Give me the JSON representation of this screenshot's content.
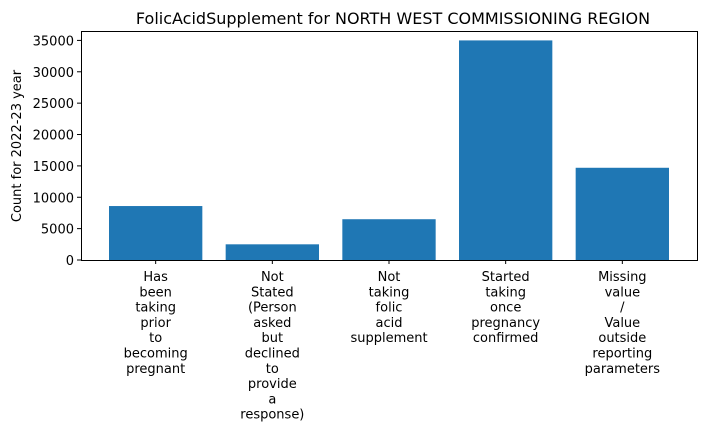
{
  "chart_data": {
    "type": "bar",
    "title": "FolicAcidSupplement for NORTH WEST COMMISSIONING REGION",
    "xlabel": "",
    "ylabel": "Count for 2022-23 year",
    "ylim": [
      0,
      36500
    ],
    "yticks": [
      0,
      5000,
      10000,
      15000,
      20000,
      25000,
      30000,
      35000
    ],
    "grid": false,
    "bar_color": "#1f77b4",
    "categories": [
      [
        "Has",
        "been",
        "taking",
        "prior",
        "to",
        "becoming",
        "pregnant"
      ],
      [
        "Not",
        "Stated",
        "(Person",
        "asked",
        "but",
        "declined",
        "to",
        "provide",
        "a",
        "response)"
      ],
      [
        "Not",
        "taking",
        "folic",
        "acid",
        "supplement"
      ],
      [
        "Started",
        "taking",
        "once",
        "pregnancy",
        "confirmed"
      ],
      [
        "Missing",
        "value",
        "/",
        "Value",
        "outside",
        "reporting",
        "parameters"
      ]
    ],
    "values": [
      8600,
      2500,
      6500,
      35000,
      14700
    ]
  }
}
